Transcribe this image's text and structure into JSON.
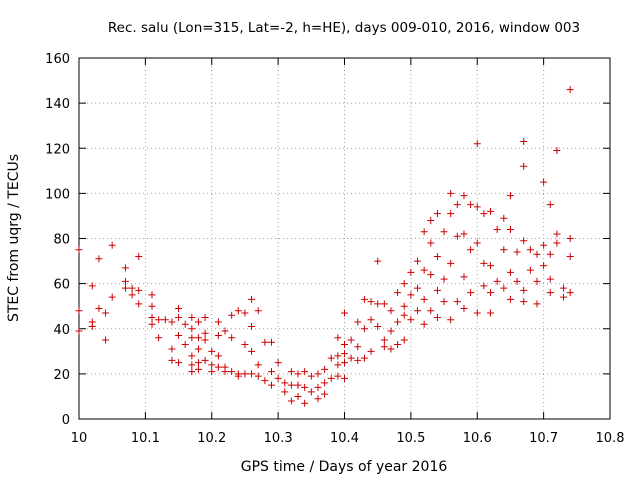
{
  "chart_data": {
    "type": "scatter",
    "title": "Rec. salu (Lon=315, Lat=-2, h=HE), days 009-010, 2016, window 003",
    "xlabel": "GPS time / Days of year 2016",
    "ylabel": "STEC from uqrg / TECUs",
    "xlim": [
      10.0,
      10.8
    ],
    "ylim": [
      0,
      160
    ],
    "xticks": [
      10,
      10.1,
      10.2,
      10.3,
      10.4,
      10.5,
      10.6,
      10.7,
      10.8
    ],
    "xtick_labels": [
      "10",
      "10.1",
      "10.2",
      "10.3",
      "10.4",
      "10.5",
      "10.6",
      "10.7",
      "10.8"
    ],
    "yticks": [
      0,
      20,
      40,
      60,
      80,
      100,
      120,
      140,
      160
    ],
    "ytick_labels": [
      "0",
      "20",
      "40",
      "60",
      "80",
      "100",
      "120",
      "140",
      "160"
    ],
    "grid": true,
    "marker": "+",
    "marker_color": "#cc0000",
    "points": [
      [
        10.0,
        48
      ],
      [
        10.0,
        39
      ],
      [
        10.0,
        75
      ],
      [
        10.02,
        59
      ],
      [
        10.02,
        43
      ],
      [
        10.02,
        41
      ],
      [
        10.03,
        71
      ],
      [
        10.03,
        49
      ],
      [
        10.04,
        35
      ],
      [
        10.04,
        47
      ],
      [
        10.05,
        77
      ],
      [
        10.05,
        54
      ],
      [
        10.07,
        67
      ],
      [
        10.07,
        61
      ],
      [
        10.07,
        58
      ],
      [
        10.08,
        58
      ],
      [
        10.08,
        55
      ],
      [
        10.09,
        72
      ],
      [
        10.09,
        57
      ],
      [
        10.09,
        51
      ],
      [
        10.11,
        55
      ],
      [
        10.11,
        50
      ],
      [
        10.11,
        45
      ],
      [
        10.11,
        42
      ],
      [
        10.12,
        44
      ],
      [
        10.12,
        36
      ],
      [
        10.13,
        44
      ],
      [
        10.14,
        43
      ],
      [
        10.14,
        31
      ],
      [
        10.14,
        26
      ],
      [
        10.15,
        49
      ],
      [
        10.15,
        45
      ],
      [
        10.15,
        37
      ],
      [
        10.15,
        25
      ],
      [
        10.16,
        42
      ],
      [
        10.16,
        33
      ],
      [
        10.17,
        45
      ],
      [
        10.17,
        40
      ],
      [
        10.17,
        36
      ],
      [
        10.17,
        28
      ],
      [
        10.17,
        24
      ],
      [
        10.17,
        21
      ],
      [
        10.18,
        43
      ],
      [
        10.18,
        36
      ],
      [
        10.18,
        31
      ],
      [
        10.18,
        25
      ],
      [
        10.18,
        22
      ],
      [
        10.19,
        45
      ],
      [
        10.19,
        38
      ],
      [
        10.19,
        35
      ],
      [
        10.19,
        26
      ],
      [
        10.2,
        30
      ],
      [
        10.2,
        24
      ],
      [
        10.2,
        21
      ],
      [
        10.21,
        43
      ],
      [
        10.21,
        37
      ],
      [
        10.21,
        28
      ],
      [
        10.21,
        23
      ],
      [
        10.22,
        39
      ],
      [
        10.22,
        23
      ],
      [
        10.22,
        21
      ],
      [
        10.23,
        46
      ],
      [
        10.23,
        36
      ],
      [
        10.23,
        21
      ],
      [
        10.24,
        20
      ],
      [
        10.24,
        48
      ],
      [
        10.24,
        19
      ],
      [
        10.25,
        47
      ],
      [
        10.25,
        33
      ],
      [
        10.25,
        20
      ],
      [
        10.26,
        53
      ],
      [
        10.26,
        41
      ],
      [
        10.26,
        30
      ],
      [
        10.26,
        20
      ],
      [
        10.27,
        48
      ],
      [
        10.27,
        24
      ],
      [
        10.27,
        19
      ],
      [
        10.28,
        34
      ],
      [
        10.28,
        17
      ],
      [
        10.29,
        34
      ],
      [
        10.29,
        21
      ],
      [
        10.29,
        15
      ],
      [
        10.3,
        25
      ],
      [
        10.3,
        18
      ],
      [
        10.31,
        16
      ],
      [
        10.31,
        12
      ],
      [
        10.32,
        21
      ],
      [
        10.32,
        15
      ],
      [
        10.32,
        8
      ],
      [
        10.33,
        20
      ],
      [
        10.33,
        15
      ],
      [
        10.33,
        10
      ],
      [
        10.34,
        21
      ],
      [
        10.34,
        14
      ],
      [
        10.34,
        7
      ],
      [
        10.35,
        19
      ],
      [
        10.35,
        12
      ],
      [
        10.36,
        20
      ],
      [
        10.36,
        14
      ],
      [
        10.36,
        9
      ],
      [
        10.37,
        22
      ],
      [
        10.37,
        16
      ],
      [
        10.37,
        11
      ],
      [
        10.38,
        27
      ],
      [
        10.38,
        18
      ],
      [
        10.39,
        36
      ],
      [
        10.39,
        28
      ],
      [
        10.39,
        24
      ],
      [
        10.39,
        19
      ],
      [
        10.4,
        47
      ],
      [
        10.4,
        33
      ],
      [
        10.4,
        29
      ],
      [
        10.4,
        25
      ],
      [
        10.4,
        18
      ],
      [
        10.41,
        35
      ],
      [
        10.41,
        27
      ],
      [
        10.42,
        43
      ],
      [
        10.42,
        32
      ],
      [
        10.42,
        26
      ],
      [
        10.43,
        53
      ],
      [
        10.43,
        40
      ],
      [
        10.43,
        27
      ],
      [
        10.44,
        52
      ],
      [
        10.44,
        44
      ],
      [
        10.44,
        30
      ],
      [
        10.45,
        70
      ],
      [
        10.45,
        51
      ],
      [
        10.45,
        41
      ],
      [
        10.46,
        51
      ],
      [
        10.46,
        35
      ],
      [
        10.46,
        32
      ],
      [
        10.47,
        48
      ],
      [
        10.47,
        39
      ],
      [
        10.47,
        31
      ],
      [
        10.48,
        56
      ],
      [
        10.48,
        43
      ],
      [
        10.48,
        33
      ],
      [
        10.49,
        60
      ],
      [
        10.49,
        50
      ],
      [
        10.49,
        46
      ],
      [
        10.49,
        35
      ],
      [
        10.5,
        65
      ],
      [
        10.5,
        55
      ],
      [
        10.5,
        44
      ],
      [
        10.51,
        70
      ],
      [
        10.51,
        58
      ],
      [
        10.51,
        48
      ],
      [
        10.52,
        83
      ],
      [
        10.52,
        66
      ],
      [
        10.52,
        53
      ],
      [
        10.52,
        42
      ],
      [
        10.53,
        88
      ],
      [
        10.53,
        78
      ],
      [
        10.53,
        64
      ],
      [
        10.53,
        48
      ],
      [
        10.54,
        91
      ],
      [
        10.54,
        72
      ],
      [
        10.54,
        57
      ],
      [
        10.54,
        45
      ],
      [
        10.55,
        83
      ],
      [
        10.55,
        62
      ],
      [
        10.55,
        52
      ],
      [
        10.56,
        100
      ],
      [
        10.56,
        91
      ],
      [
        10.56,
        69
      ],
      [
        10.56,
        44
      ],
      [
        10.57,
        95
      ],
      [
        10.57,
        81
      ],
      [
        10.57,
        52
      ],
      [
        10.58,
        99
      ],
      [
        10.58,
        82
      ],
      [
        10.58,
        63
      ],
      [
        10.58,
        49
      ],
      [
        10.59,
        95
      ],
      [
        10.59,
        75
      ],
      [
        10.59,
        56
      ],
      [
        10.6,
        122
      ],
      [
        10.6,
        94
      ],
      [
        10.6,
        78
      ],
      [
        10.6,
        47
      ],
      [
        10.61,
        91
      ],
      [
        10.61,
        69
      ],
      [
        10.61,
        59
      ],
      [
        10.62,
        92
      ],
      [
        10.62,
        68
      ],
      [
        10.62,
        56
      ],
      [
        10.62,
        47
      ],
      [
        10.63,
        84
      ],
      [
        10.63,
        61
      ],
      [
        10.64,
        89
      ],
      [
        10.64,
        75
      ],
      [
        10.64,
        58
      ],
      [
        10.65,
        99
      ],
      [
        10.65,
        84
      ],
      [
        10.65,
        65
      ],
      [
        10.65,
        53
      ],
      [
        10.66,
        74
      ],
      [
        10.66,
        61
      ],
      [
        10.67,
        123
      ],
      [
        10.67,
        112
      ],
      [
        10.67,
        79
      ],
      [
        10.67,
        57
      ],
      [
        10.67,
        52
      ],
      [
        10.68,
        75
      ],
      [
        10.68,
        66
      ],
      [
        10.69,
        73
      ],
      [
        10.69,
        61
      ],
      [
        10.69,
        51
      ],
      [
        10.7,
        105
      ],
      [
        10.7,
        77
      ],
      [
        10.7,
        68
      ],
      [
        10.71,
        95
      ],
      [
        10.71,
        73
      ],
      [
        10.71,
        62
      ],
      [
        10.71,
        56
      ],
      [
        10.72,
        119
      ],
      [
        10.72,
        82
      ],
      [
        10.72,
        78
      ],
      [
        10.73,
        58
      ],
      [
        10.73,
        54
      ],
      [
        10.74,
        146
      ],
      [
        10.74,
        80
      ],
      [
        10.74,
        72
      ],
      [
        10.74,
        56
      ]
    ]
  }
}
